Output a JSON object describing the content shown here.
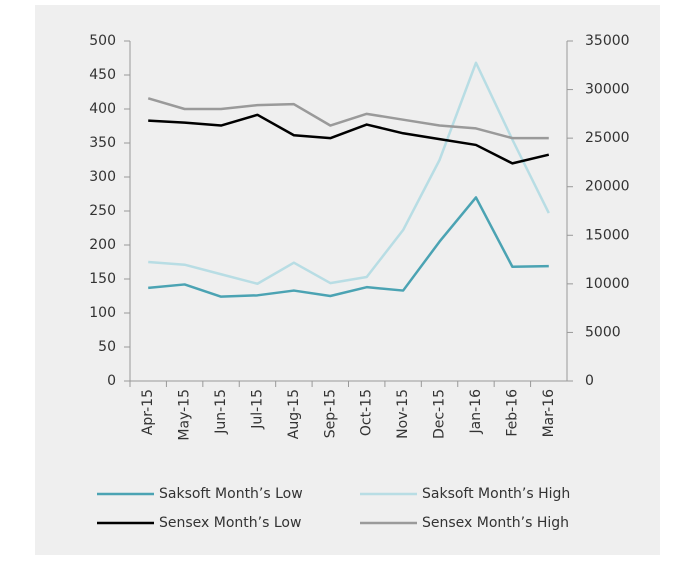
{
  "chart_data": {
    "type": "line",
    "categories": [
      "Apr-15",
      "May-15",
      "Jun-15",
      "Jul-15",
      "Aug-15",
      "Sep-15",
      "Oct-15",
      "Nov-15",
      "Dec-15",
      "Jan-16",
      "Feb-16",
      "Mar-16"
    ],
    "series": [
      {
        "name": "Saksoft Month’s Low",
        "color": "#4ba3b3",
        "values": [
          137,
          142,
          124,
          126,
          133,
          125,
          138,
          133,
          205,
          270,
          168,
          169
        ]
      },
      {
        "name": "Saksoft Month’s High",
        "color": "#b8dde4",
        "values": [
          175,
          171,
          157,
          143,
          174,
          144,
          153,
          222,
          325,
          468,
          355,
          247
        ]
      },
      {
        "name": "Sensex Month’s Low",
        "color": "#000000",
        "axis": "y2",
        "values": [
          26800,
          26600,
          26300,
          27400,
          25300,
          25000,
          26400,
          25500,
          24900,
          24300,
          22400,
          23300
        ]
      },
      {
        "name": "Sensex Month’s High",
        "color": "#9a9a9a",
        "axis": "y2",
        "values": [
          29100,
          28000,
          28000,
          28400,
          28500,
          26300,
          27500,
          26900,
          26300,
          26000,
          25000,
          25000
        ]
      }
    ],
    "ylim": [
      0,
      500
    ],
    "yticks": [
      0,
      50,
      100,
      150,
      200,
      250,
      300,
      350,
      400,
      450,
      500
    ],
    "y2lim": [
      0,
      35000
    ],
    "y2ticks": [
      0,
      5000,
      10000,
      15000,
      20000,
      25000,
      30000,
      35000
    ]
  }
}
